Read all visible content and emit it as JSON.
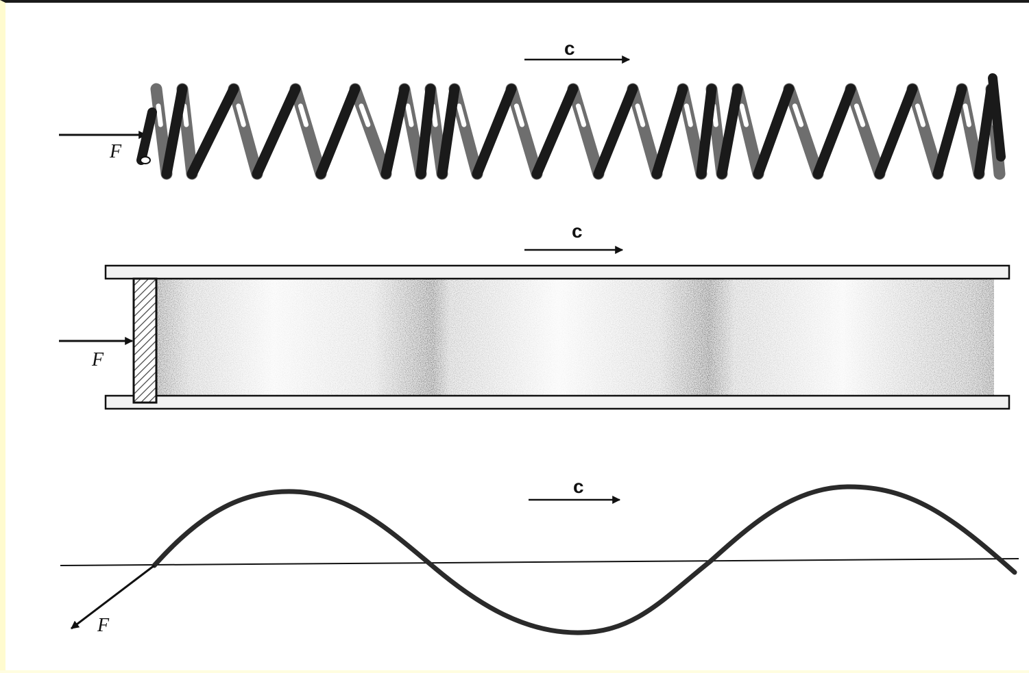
{
  "panels": [
    {
      "id": "spring",
      "velocity_label": "c",
      "force_label": "F"
    },
    {
      "id": "tube",
      "velocity_label": "c",
      "force_label": "F"
    },
    {
      "id": "string",
      "velocity_label": "c",
      "force_label": "F"
    }
  ],
  "colors": {
    "ink": "#111111",
    "background": "#ffffff",
    "border_left": "#fffbcf",
    "border_top": "#1a1a1a",
    "spring_front": "#1a1a1a",
    "spring_back": "#6e6e6e",
    "tube_wall": "#f2f2f2",
    "piston_hatch": "#444444"
  }
}
